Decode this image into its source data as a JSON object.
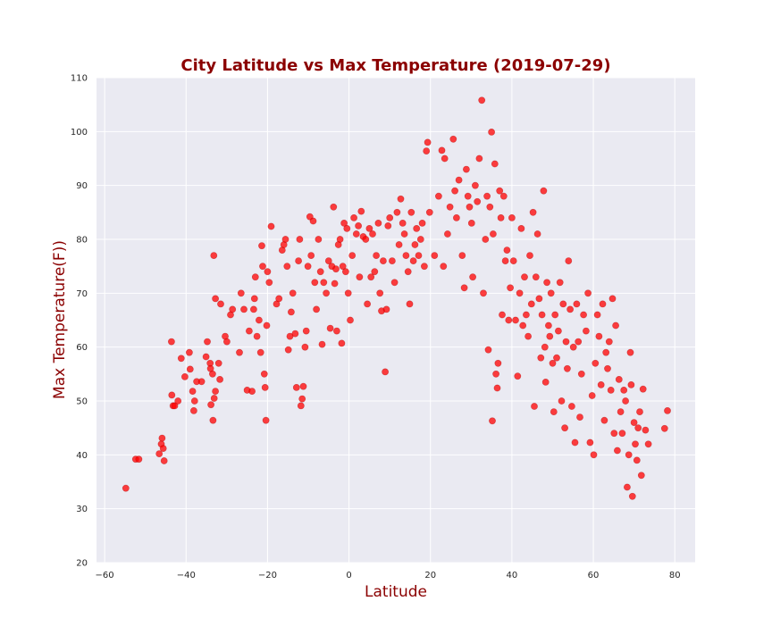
{
  "chart_data": {
    "type": "scatter",
    "title": "City Latitude vs Max Temperature (2019-07-29)",
    "xlabel": "Latitude",
    "ylabel": "Max Temperature(F))",
    "xlim": [
      -62,
      85
    ],
    "ylim": [
      20,
      110
    ],
    "xticks": [
      -60,
      -40,
      -20,
      0,
      20,
      40,
      60,
      80
    ],
    "yticks": [
      20,
      30,
      40,
      50,
      60,
      70,
      80,
      90,
      100,
      110
    ],
    "grid": true,
    "legend": "none",
    "colors": {
      "marker": "#ff0000",
      "background": "#eaeaf2",
      "grid": "#ffffff",
      "title": "#8b0000"
    },
    "series": [
      {
        "points": [
          [
            -54.8,
            33.8
          ],
          [
            -52.4,
            39.2
          ],
          [
            -51.6,
            39.2
          ],
          [
            -46.6,
            40.2
          ],
          [
            -46.1,
            42.0
          ],
          [
            -45.9,
            43.1
          ],
          [
            -45.6,
            41.2
          ],
          [
            -45.4,
            38.9
          ],
          [
            -43.5,
            51.1
          ],
          [
            -43.2,
            49.1
          ],
          [
            -42.8,
            49.1
          ],
          [
            -42.0,
            50.0
          ],
          [
            -43.6,
            61.0
          ],
          [
            -41.2,
            57.9
          ],
          [
            -40.3,
            54.5
          ],
          [
            -39.2,
            59.0
          ],
          [
            -39.0,
            55.9
          ],
          [
            -38.4,
            51.8
          ],
          [
            -37.9,
            50.0
          ],
          [
            -38.1,
            48.2
          ],
          [
            -37.4,
            53.6
          ],
          [
            -36.2,
            53.6
          ],
          [
            -35.1,
            58.2
          ],
          [
            -34.8,
            61.0
          ],
          [
            -34.1,
            57.0
          ],
          [
            -34.0,
            56.0
          ],
          [
            -33.5,
            55.0
          ],
          [
            -33.9,
            49.3
          ],
          [
            -33.4,
            46.4
          ],
          [
            -33.1,
            50.5
          ],
          [
            -32.8,
            51.8
          ],
          [
            -33.2,
            77.0
          ],
          [
            -32.8,
            69.0
          ],
          [
            -32.0,
            57.0
          ],
          [
            -31.7,
            54.0
          ],
          [
            -31.5,
            68.0
          ],
          [
            -30.4,
            62.0
          ],
          [
            -30.0,
            61.0
          ],
          [
            -29.1,
            66.0
          ],
          [
            -28.6,
            67.0
          ],
          [
            -26.9,
            59.0
          ],
          [
            -26.5,
            70.0
          ],
          [
            -25.8,
            67.0
          ],
          [
            -25.0,
            52.0
          ],
          [
            -24.5,
            63.0
          ],
          [
            -23.8,
            51.8
          ],
          [
            -23.4,
            67.0
          ],
          [
            -23.2,
            69.0
          ],
          [
            -23.0,
            73.0
          ],
          [
            -22.6,
            62.0
          ],
          [
            -22.1,
            65.0
          ],
          [
            -21.7,
            59.0
          ],
          [
            -21.4,
            78.8
          ],
          [
            -21.2,
            75.0
          ],
          [
            -20.8,
            55.0
          ],
          [
            -20.6,
            52.5
          ],
          [
            -20.4,
            46.4
          ],
          [
            -20.2,
            64.0
          ],
          [
            -20.0,
            74.0
          ],
          [
            -19.6,
            72.0
          ],
          [
            -19.1,
            82.4
          ],
          [
            -17.8,
            68.0
          ],
          [
            -17.2,
            69.0
          ],
          [
            -16.4,
            78.0
          ],
          [
            -16.0,
            79.0
          ],
          [
            -15.6,
            80.0
          ],
          [
            -15.2,
            75.0
          ],
          [
            -14.9,
            59.5
          ],
          [
            -14.5,
            62.0
          ],
          [
            -14.2,
            66.5
          ],
          [
            -13.8,
            70.0
          ],
          [
            -13.2,
            62.5
          ],
          [
            -12.9,
            52.5
          ],
          [
            -12.4,
            76.0
          ],
          [
            -12.1,
            80.0
          ],
          [
            -11.8,
            49.1
          ],
          [
            -11.5,
            50.4
          ],
          [
            -11.2,
            52.7
          ],
          [
            -10.8,
            60.0
          ],
          [
            -10.5,
            63.0
          ],
          [
            -10.1,
            75.0
          ],
          [
            -9.6,
            84.2
          ],
          [
            -9.3,
            77.0
          ],
          [
            -8.8,
            83.4
          ],
          [
            -8.4,
            72.0
          ],
          [
            -8.0,
            67.0
          ],
          [
            -7.5,
            80.0
          ],
          [
            -7.0,
            74.0
          ],
          [
            -6.6,
            60.5
          ],
          [
            -6.2,
            72.0
          ],
          [
            -5.6,
            70.0
          ],
          [
            -5.0,
            76.0
          ],
          [
            -4.6,
            63.5
          ],
          [
            -4.2,
            75.0
          ],
          [
            -3.8,
            86.0
          ],
          [
            -3.5,
            71.8
          ],
          [
            -3.2,
            74.5
          ],
          [
            -3.0,
            63.0
          ],
          [
            -2.6,
            79.0
          ],
          [
            -2.2,
            80.0
          ],
          [
            -1.8,
            60.7
          ],
          [
            -1.5,
            75.0
          ],
          [
            -1.2,
            83.0
          ],
          [
            -0.8,
            74.0
          ],
          [
            -0.5,
            82.0
          ],
          [
            -0.2,
            70.0
          ],
          [
            0.3,
            65.0
          ],
          [
            0.8,
            77.0
          ],
          [
            1.2,
            84.0
          ],
          [
            1.8,
            81.0
          ],
          [
            2.3,
            82.5
          ],
          [
            2.6,
            73.0
          ],
          [
            3.0,
            85.2
          ],
          [
            3.5,
            80.5
          ],
          [
            4.1,
            80.0
          ],
          [
            4.5,
            68.0
          ],
          [
            5.0,
            82.0
          ],
          [
            5.4,
            73.0
          ],
          [
            5.8,
            81.0
          ],
          [
            6.3,
            74.0
          ],
          [
            6.7,
            77.0
          ],
          [
            7.2,
            83.0
          ],
          [
            7.6,
            70.0
          ],
          [
            8.0,
            66.7
          ],
          [
            8.4,
            76.0
          ],
          [
            8.9,
            55.4
          ],
          [
            9.2,
            67.0
          ],
          [
            9.6,
            82.5
          ],
          [
            10.0,
            84.0
          ],
          [
            10.6,
            76.0
          ],
          [
            11.2,
            72.0
          ],
          [
            11.8,
            85.0
          ],
          [
            12.3,
            79.0
          ],
          [
            12.7,
            87.5
          ],
          [
            13.2,
            83.0
          ],
          [
            13.6,
            81.0
          ],
          [
            14.0,
            77.0
          ],
          [
            14.5,
            74.0
          ],
          [
            14.9,
            68.0
          ],
          [
            15.3,
            85.0
          ],
          [
            15.8,
            76.0
          ],
          [
            16.2,
            79.0
          ],
          [
            16.6,
            82.0
          ],
          [
            17.1,
            77.0
          ],
          [
            17.6,
            80.0
          ],
          [
            18.0,
            83.0
          ],
          [
            18.5,
            75.0
          ],
          [
            19.0,
            96.4
          ],
          [
            19.3,
            98.0
          ],
          [
            19.8,
            85.0
          ],
          [
            21.0,
            77.0
          ],
          [
            22.0,
            88.0
          ],
          [
            22.8,
            96.5
          ],
          [
            23.2,
            75.0
          ],
          [
            23.5,
            95.0
          ],
          [
            24.2,
            81.0
          ],
          [
            24.8,
            86.0
          ],
          [
            25.6,
            98.6
          ],
          [
            26.0,
            89.0
          ],
          [
            26.4,
            84.0
          ],
          [
            27.0,
            91.0
          ],
          [
            27.8,
            77.0
          ],
          [
            28.3,
            71.0
          ],
          [
            28.8,
            93.0
          ],
          [
            29.2,
            88.0
          ],
          [
            29.6,
            86.0
          ],
          [
            30.1,
            83.0
          ],
          [
            30.4,
            73.0
          ],
          [
            31.0,
            90.0
          ],
          [
            31.5,
            87.0
          ],
          [
            32.0,
            95.0
          ],
          [
            32.6,
            105.8
          ],
          [
            33.0,
            70.0
          ],
          [
            33.5,
            80.0
          ],
          [
            33.9,
            88.0
          ],
          [
            34.2,
            59.5
          ],
          [
            34.6,
            86.0
          ],
          [
            35.0,
            99.9
          ],
          [
            35.2,
            46.3
          ],
          [
            35.4,
            81.0
          ],
          [
            35.8,
            94.0
          ],
          [
            36.1,
            55.0
          ],
          [
            36.4,
            52.4
          ],
          [
            36.6,
            57.0
          ],
          [
            37.0,
            89.0
          ],
          [
            37.3,
            84.0
          ],
          [
            37.6,
            66.0
          ],
          [
            38.0,
            88.0
          ],
          [
            38.4,
            76.0
          ],
          [
            38.8,
            78.0
          ],
          [
            39.2,
            65.0
          ],
          [
            39.6,
            71.0
          ],
          [
            40.0,
            84.0
          ],
          [
            40.4,
            76.0
          ],
          [
            40.9,
            65.0
          ],
          [
            41.4,
            54.6
          ],
          [
            41.9,
            70.0
          ],
          [
            42.3,
            82.0
          ],
          [
            42.7,
            64.0
          ],
          [
            43.1,
            73.0
          ],
          [
            43.5,
            66.0
          ],
          [
            44.0,
            62.0
          ],
          [
            44.4,
            77.0
          ],
          [
            44.8,
            68.0
          ],
          [
            45.2,
            85.0
          ],
          [
            45.5,
            49.0
          ],
          [
            45.9,
            73.0
          ],
          [
            46.3,
            81.0
          ],
          [
            46.7,
            69.0
          ],
          [
            47.1,
            58.0
          ],
          [
            47.4,
            66.0
          ],
          [
            47.8,
            89.0
          ],
          [
            48.1,
            60.0
          ],
          [
            48.3,
            53.5
          ],
          [
            48.6,
            72.0
          ],
          [
            49.0,
            64.0
          ],
          [
            49.3,
            62.0
          ],
          [
            49.6,
            70.0
          ],
          [
            50.0,
            57.0
          ],
          [
            50.3,
            48.0
          ],
          [
            50.6,
            66.0
          ],
          [
            51.0,
            58.0
          ],
          [
            51.4,
            63.0
          ],
          [
            51.8,
            72.0
          ],
          [
            52.2,
            50.0
          ],
          [
            52.6,
            68.0
          ],
          [
            53.0,
            45.0
          ],
          [
            53.3,
            61.0
          ],
          [
            53.6,
            56.0
          ],
          [
            53.9,
            76.0
          ],
          [
            54.3,
            67.0
          ],
          [
            54.7,
            49.0
          ],
          [
            55.1,
            60.0
          ],
          [
            55.5,
            42.3
          ],
          [
            55.9,
            68.0
          ],
          [
            56.3,
            61.0
          ],
          [
            56.7,
            47.0
          ],
          [
            57.1,
            55.0
          ],
          [
            57.6,
            66.0
          ],
          [
            58.2,
            63.0
          ],
          [
            58.7,
            70.0
          ],
          [
            59.2,
            42.3
          ],
          [
            59.7,
            51.0
          ],
          [
            60.1,
            40.0
          ],
          [
            60.5,
            57.0
          ],
          [
            61.0,
            66.0
          ],
          [
            61.4,
            62.0
          ],
          [
            61.9,
            53.0
          ],
          [
            62.3,
            68.0
          ],
          [
            62.7,
            46.4
          ],
          [
            63.1,
            59.0
          ],
          [
            63.5,
            56.0
          ],
          [
            63.9,
            61.0
          ],
          [
            64.3,
            52.0
          ],
          [
            64.7,
            69.0
          ],
          [
            65.1,
            44.0
          ],
          [
            65.5,
            64.0
          ],
          [
            65.9,
            40.8
          ],
          [
            66.3,
            54.0
          ],
          [
            66.7,
            48.0
          ],
          [
            67.1,
            44.0
          ],
          [
            67.5,
            52.0
          ],
          [
            67.9,
            50.0
          ],
          [
            68.3,
            34.0
          ],
          [
            68.7,
            40.0
          ],
          [
            69.1,
            59.0
          ],
          [
            69.3,
            53.0
          ],
          [
            69.6,
            32.3
          ],
          [
            70.0,
            46.0
          ],
          [
            70.3,
            42.0
          ],
          [
            70.7,
            39.0
          ],
          [
            71.0,
            45.0
          ],
          [
            71.4,
            48.0
          ],
          [
            71.8,
            36.2
          ],
          [
            72.2,
            52.2
          ],
          [
            72.8,
            44.6
          ],
          [
            73.5,
            42.0
          ],
          [
            77.5,
            44.9
          ],
          [
            78.2,
            48.2
          ]
        ]
      }
    ]
  }
}
